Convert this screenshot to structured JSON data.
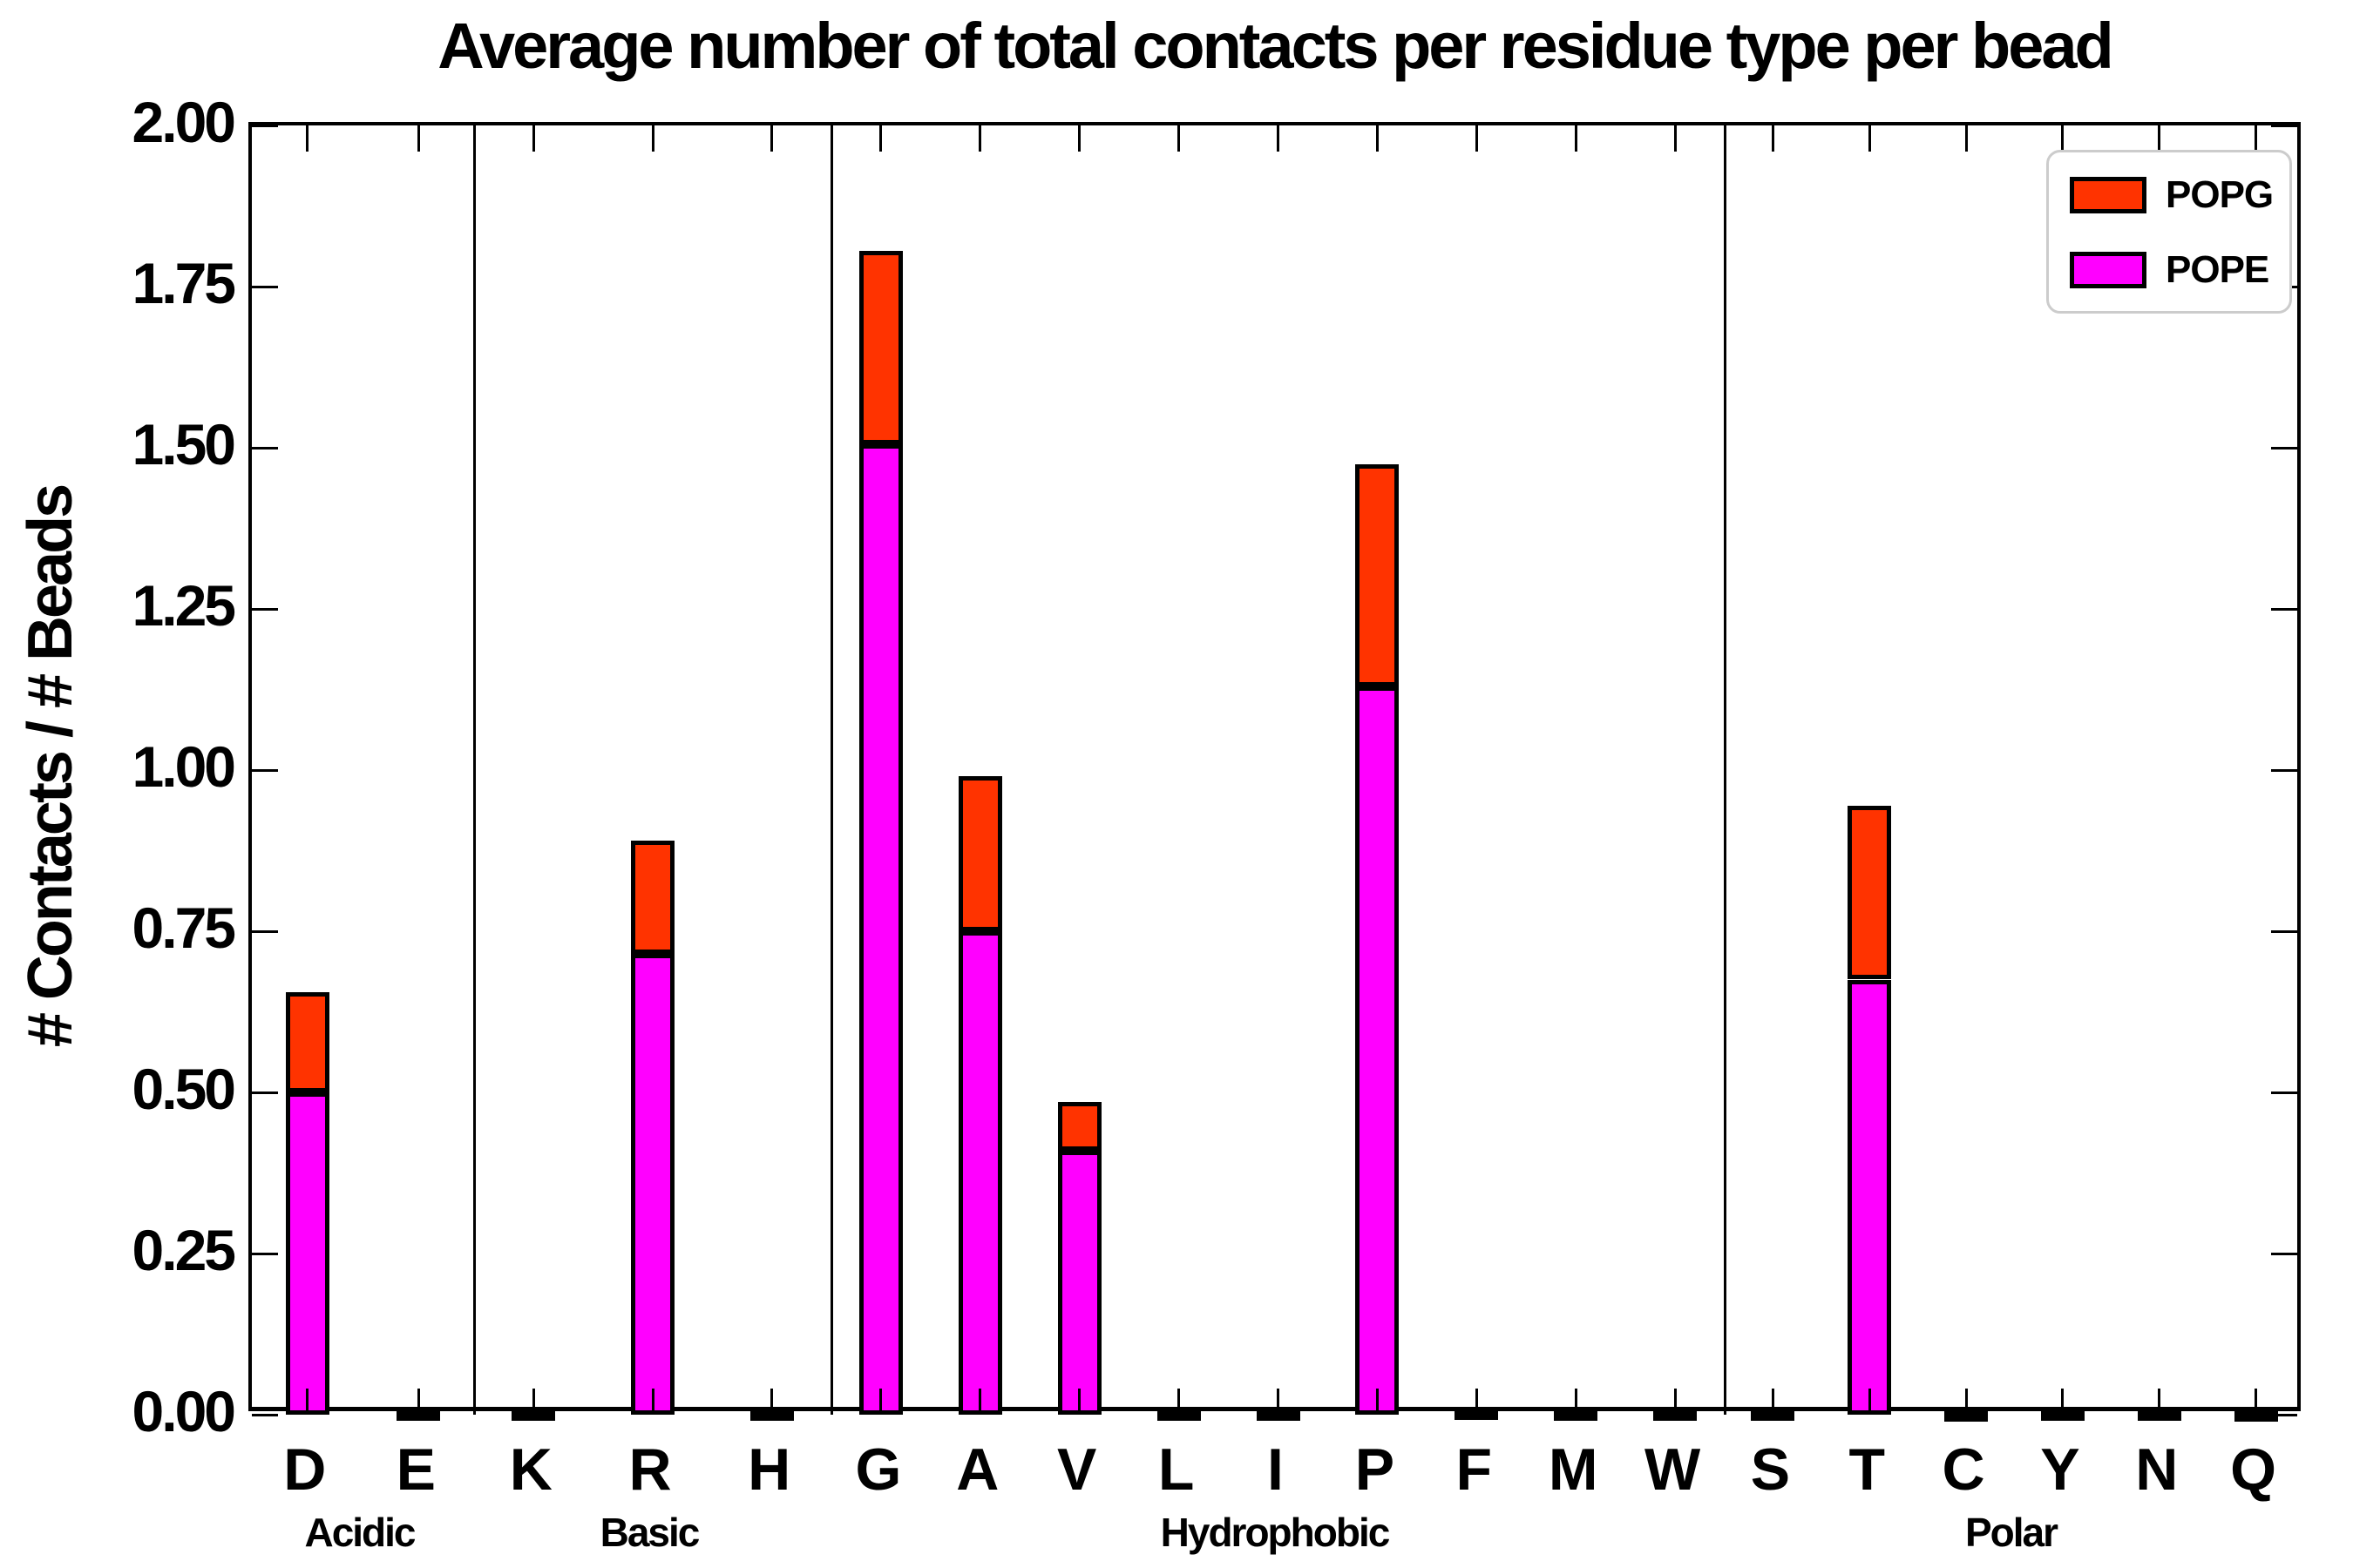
{
  "title": "Average number of total contacts per residue type per bead",
  "ylabel": "# Contacts / # Beads",
  "chart_data": {
    "type": "bar",
    "stacked": true,
    "grid": false,
    "legend_position": "upper right",
    "ylim": [
      0.0,
      2.0
    ],
    "ytick_step": 0.25,
    "ytick_labels": [
      "0.00",
      "0.25",
      "0.50",
      "0.75",
      "1.00",
      "1.25",
      "1.50",
      "1.75",
      "2.00"
    ],
    "groups": [
      {
        "label": "Acidic",
        "categories": [
          "D",
          "E"
        ]
      },
      {
        "label": "Basic",
        "categories": [
          "K",
          "R",
          "H"
        ]
      },
      {
        "label": "Hydrophobic",
        "categories": [
          "G",
          "A",
          "V",
          "L",
          "I",
          "P",
          "F",
          "M",
          "W"
        ]
      },
      {
        "label": "Polar",
        "categories": [
          "S",
          "T",
          "C",
          "Y",
          "N",
          "Q"
        ]
      }
    ],
    "categories": [
      "D",
      "E",
      "K",
      "R",
      "H",
      "G",
      "A",
      "V",
      "L",
      "I",
      "P",
      "F",
      "M",
      "W",
      "S",
      "T",
      "C",
      "Y",
      "N",
      "Q"
    ],
    "series": [
      {
        "name": "POPE",
        "color": "#FF00FF",
        "values": [
          0.5,
          0.004,
          0.004,
          0.715,
          0.004,
          1.505,
          0.75,
          0.41,
          0.004,
          0.004,
          1.13,
          0.005,
          0.004,
          0.004,
          0.004,
          0.675,
          0.003,
          0.004,
          0.004,
          0.003
        ]
      },
      {
        "name": "POPG",
        "color": "#FF3300",
        "values": [
          0.155,
          0.002,
          0.002,
          0.175,
          0.002,
          0.3,
          0.24,
          0.075,
          0.002,
          0.002,
          0.345,
          0.003,
          0.002,
          0.002,
          0.002,
          0.27,
          0.002,
          0.002,
          0.002,
          0.002
        ]
      }
    ],
    "totals": [
      0.655,
      0.006,
      0.006,
      0.89,
      0.006,
      1.805,
      0.99,
      0.485,
      0.006,
      0.006,
      1.475,
      0.008,
      0.006,
      0.006,
      0.006,
      0.945,
      0.005,
      0.006,
      0.006,
      0.005
    ],
    "legend": [
      {
        "label": "POPG"
      },
      {
        "label": "POPE"
      }
    ]
  }
}
